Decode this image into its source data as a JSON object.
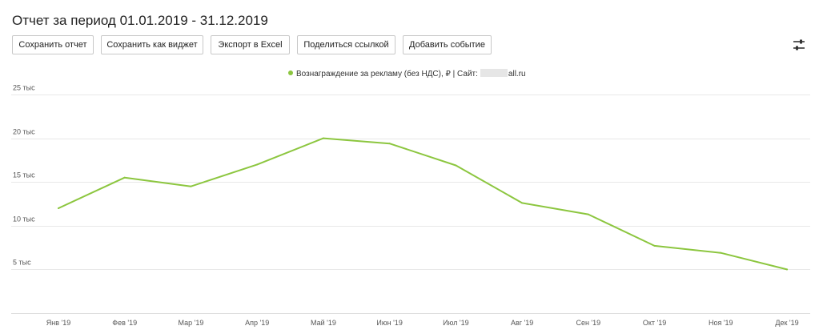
{
  "header": {
    "title": "Отчет за период 01.01.2019 - 31.12.2019"
  },
  "toolbar": {
    "buttons": [
      {
        "label": "Сохранить отчет"
      },
      {
        "label": "Сохранить как виджет"
      },
      {
        "label": "Экспорт в Excel"
      },
      {
        "label": "Поделиться ссылкой"
      },
      {
        "label": "Добавить событие"
      }
    ],
    "settings_icon": "sliders-icon"
  },
  "legend": {
    "label": "Вознаграждение за рекламу (без НДС), ₽ | Сайт:",
    "site_suffix": "all.ru",
    "color": "#8cc63f"
  },
  "chart_data": {
    "type": "line",
    "title": "",
    "xlabel": "",
    "ylabel": "",
    "categories": [
      "Янв '19",
      "Фев '19",
      "Мар '19",
      "Апр '19",
      "Май '19",
      "Июн '19",
      "Июл '19",
      "Авг '19",
      "Сен '19",
      "Окт '19",
      "Ноя '19",
      "Дек '19"
    ],
    "series": [
      {
        "name": "Вознаграждение за рекламу (без НДС), ₽",
        "color": "#8cc63f",
        "values": [
          12000,
          15500,
          14500,
          17000,
          20000,
          19400,
          16900,
          12600,
          11300,
          7700,
          6900,
          5000
        ]
      }
    ],
    "ylim": [
      0,
      25000
    ],
    "yticks": [
      {
        "value": 5000,
        "label": "5 тыс"
      },
      {
        "value": 10000,
        "label": "10 тыс"
      },
      {
        "value": 15000,
        "label": "15 тыс"
      },
      {
        "value": 20000,
        "label": "20 тыс"
      },
      {
        "value": 25000,
        "label": "25 тыс"
      }
    ],
    "grid": true,
    "legend_position": "top-center"
  }
}
